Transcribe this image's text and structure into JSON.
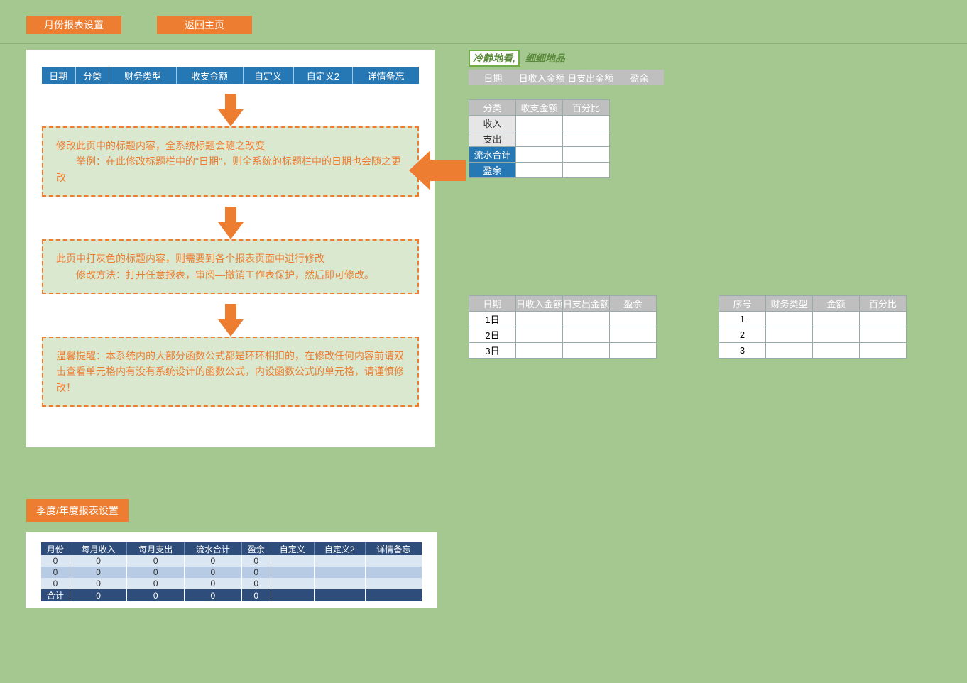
{
  "topButtons": {
    "settings": "月份报表设置",
    "home": "返回主页"
  },
  "mainHeaders": [
    "日期",
    "分类",
    "财务类型",
    "收支金额",
    "自定义",
    "自定义2",
    "详情备忘"
  ],
  "box1": "修改此页中的标题内容，全系统标题会随之改变\n　　举例：在此修改标题栏中的\"日期\"，则全系统的标题栏中的日期也会随之更改",
  "box2": "此页中打灰色的标题内容，则需要到各个报表页面中进行修改\n　　修改方法：打开任意报表，审阅—撤销工作表保护，然后即可修改。",
  "box3": "温馨提醒：本系统内的大部分函数公式都是环环相扣的，在修改任何内容前请双击查看单元格内有没有系统设计的函数公式，内设函数公式的单元格，请谨慎修改！",
  "sectionTitle": "季度/年度报表设置",
  "navyHeaders": [
    "月份",
    "每月收入",
    "每月支出",
    "流水合计",
    "盈余",
    "自定义",
    "自定义2",
    "详情备忘"
  ],
  "navyRows": [
    {
      "cls": "r-light",
      "cells": [
        "0",
        "0",
        "0",
        "0",
        "0",
        "",
        "",
        ""
      ]
    },
    {
      "cls": "r-mid",
      "cells": [
        "0",
        "0",
        "0",
        "0",
        "0",
        "",
        "",
        ""
      ]
    },
    {
      "cls": "r-light",
      "cells": [
        "0",
        "0",
        "0",
        "0",
        "0",
        "",
        "",
        ""
      ]
    },
    {
      "cls": "r-total",
      "cells": [
        "合计",
        "0",
        "0",
        "0",
        "0",
        "",
        "",
        ""
      ]
    }
  ],
  "tagline": {
    "highlight": "冷静地看,",
    "sub": "细细地品"
  },
  "grayBar": [
    "日期",
    "日收入金额",
    "日支出金额",
    "盈余"
  ],
  "miniT1": {
    "headers": [
      "分类",
      "收支金额",
      "百分比"
    ],
    "rows": [
      {
        "label": "收入",
        "labelCls": "gray-cell",
        "c2": "",
        "c3": ""
      },
      {
        "label": "支出",
        "labelCls": "gray-cell",
        "c2": "",
        "c3": ""
      },
      {
        "label": "流水合计",
        "labelCls": "blue-cell",
        "c2": "",
        "c3": ""
      },
      {
        "label": "盈余",
        "labelCls": "blue-cell",
        "c2": "",
        "c3": ""
      }
    ]
  },
  "miniT2": {
    "headers": [
      "日期",
      "日收入金额",
      "日支出金额",
      "盈余"
    ],
    "rows": [
      {
        "label": "1日",
        "c2": "",
        "c3": "",
        "c4": ""
      },
      {
        "label": "2日",
        "c2": "",
        "c3": "",
        "c4": ""
      },
      {
        "label": "3日",
        "c2": "",
        "c3": "",
        "c4": ""
      }
    ]
  },
  "miniT3": {
    "headers": [
      "序号",
      "财务类型",
      "金额",
      "百分比"
    ],
    "rows": [
      {
        "label": "1",
        "c2": "",
        "c3": "",
        "c4": ""
      },
      {
        "label": "2",
        "c2": "",
        "c3": "",
        "c4": ""
      },
      {
        "label": "3",
        "c2": "",
        "c3": "",
        "c4": ""
      }
    ]
  },
  "colors": {
    "pageBg": "#a4c890",
    "orange": "#ed7d31",
    "headerBlue": "#2678b5",
    "navy": "#2e4d7a",
    "gray": "#bfbfbf",
    "dashedBoxBg": "#d9e8cf"
  }
}
